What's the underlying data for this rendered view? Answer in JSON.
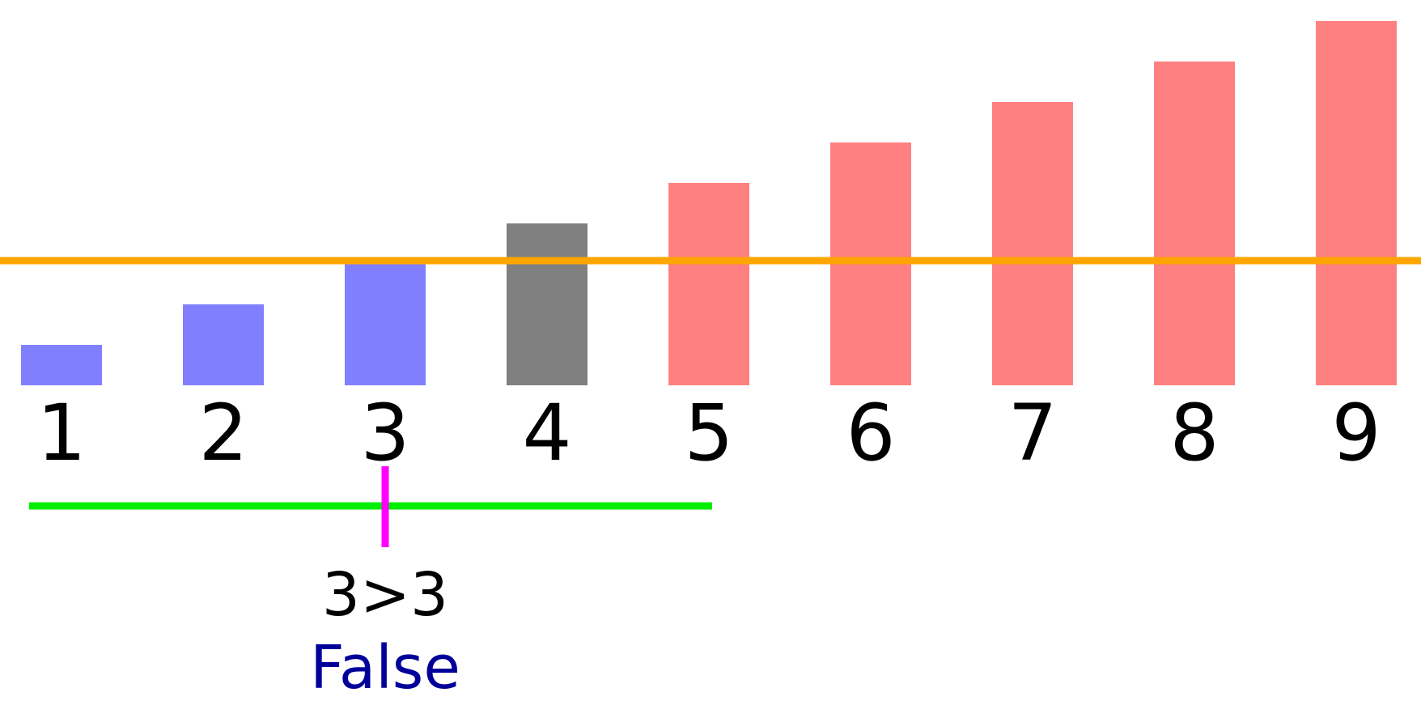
{
  "chart_data": {
    "type": "bar",
    "categories": [
      "1",
      "2",
      "3",
      "4",
      "5",
      "6",
      "7",
      "8",
      "9"
    ],
    "values": [
      1,
      2,
      3,
      4,
      5,
      6,
      7,
      8,
      9
    ],
    "bar_states": [
      "low",
      "low",
      "low",
      "pivot",
      "high",
      "high",
      "high",
      "high",
      "high"
    ],
    "threshold": 3,
    "pointer_index": 3,
    "range": {
      "from": 1,
      "to": 5
    },
    "comparison_text": "3>3",
    "result_text": "False",
    "title": "",
    "xlabel": "",
    "ylabel": ""
  },
  "colors": {
    "low": "#8080ff",
    "pivot": "#808080",
    "high": "#ff8080",
    "threshold_line": "#ffa500",
    "range_line": "#00ee00",
    "pointer": "#ff00ff",
    "result_text": "#000099"
  }
}
